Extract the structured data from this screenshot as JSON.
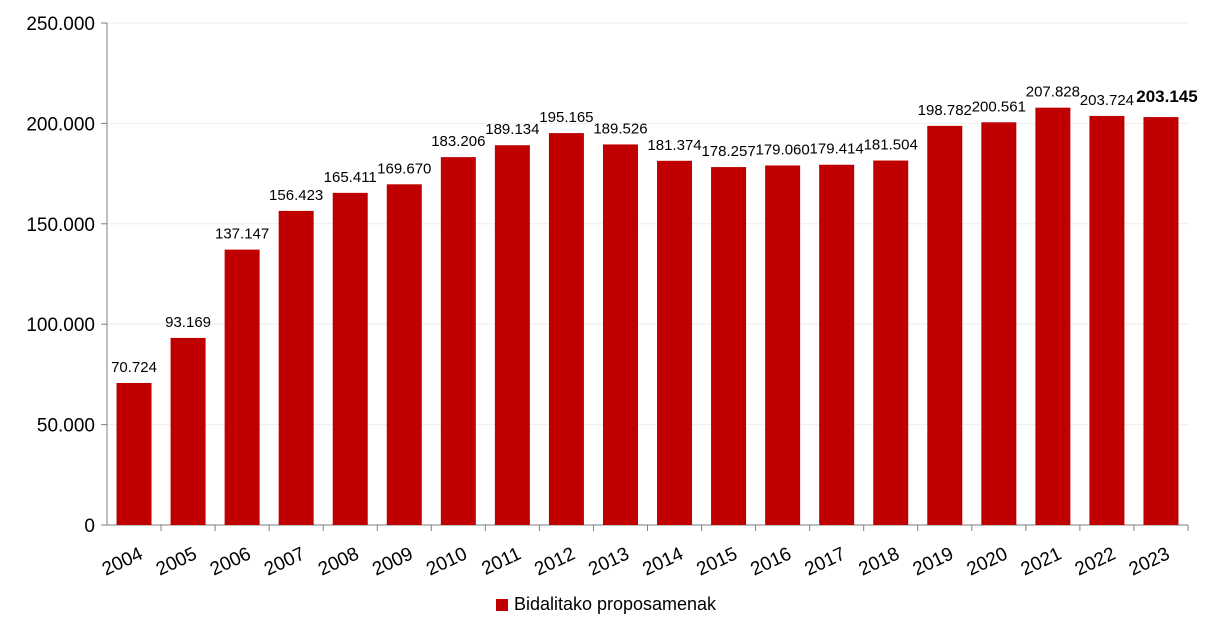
{
  "chart_data": {
    "type": "bar",
    "categories": [
      "2004",
      "2005",
      "2006",
      "2007",
      "2008",
      "2009",
      "2010",
      "2011",
      "2012",
      "2013",
      "2014",
      "2015",
      "2016",
      "2017",
      "2018",
      "2019",
      "2020",
      "2021",
      "2022",
      "2023"
    ],
    "series": [
      {
        "name": "Bidalitako proposamenak",
        "values": [
          70724,
          93169,
          137147,
          156423,
          165411,
          169670,
          183206,
          189134,
          195165,
          189526,
          181374,
          178257,
          179060,
          179414,
          181504,
          198782,
          200561,
          207828,
          203724,
          203145
        ],
        "labels": [
          "70.724",
          "93.169",
          "137.147",
          "156.423",
          "165.411",
          "169.670",
          "183.206",
          "189.134",
          "195.165",
          "189.526",
          "181.374",
          "178.257",
          "179.060",
          "179.414",
          "181.504",
          "198.782",
          "200.561",
          "207.828",
          "203.724",
          "203.145"
        ],
        "color": "#C00000"
      }
    ],
    "highlight_last_label_bold": true,
    "ylim": [
      0,
      250000
    ],
    "yticks": [
      0,
      50000,
      100000,
      150000,
      200000,
      250000
    ],
    "ytick_labels": [
      "0",
      "50.000",
      "100.000",
      "150.000",
      "200.000",
      "250.000"
    ],
    "grid": true,
    "grid_color": "#eeeeee",
    "legend_position": "bottom-center",
    "xtick_rotation_deg": -25
  }
}
